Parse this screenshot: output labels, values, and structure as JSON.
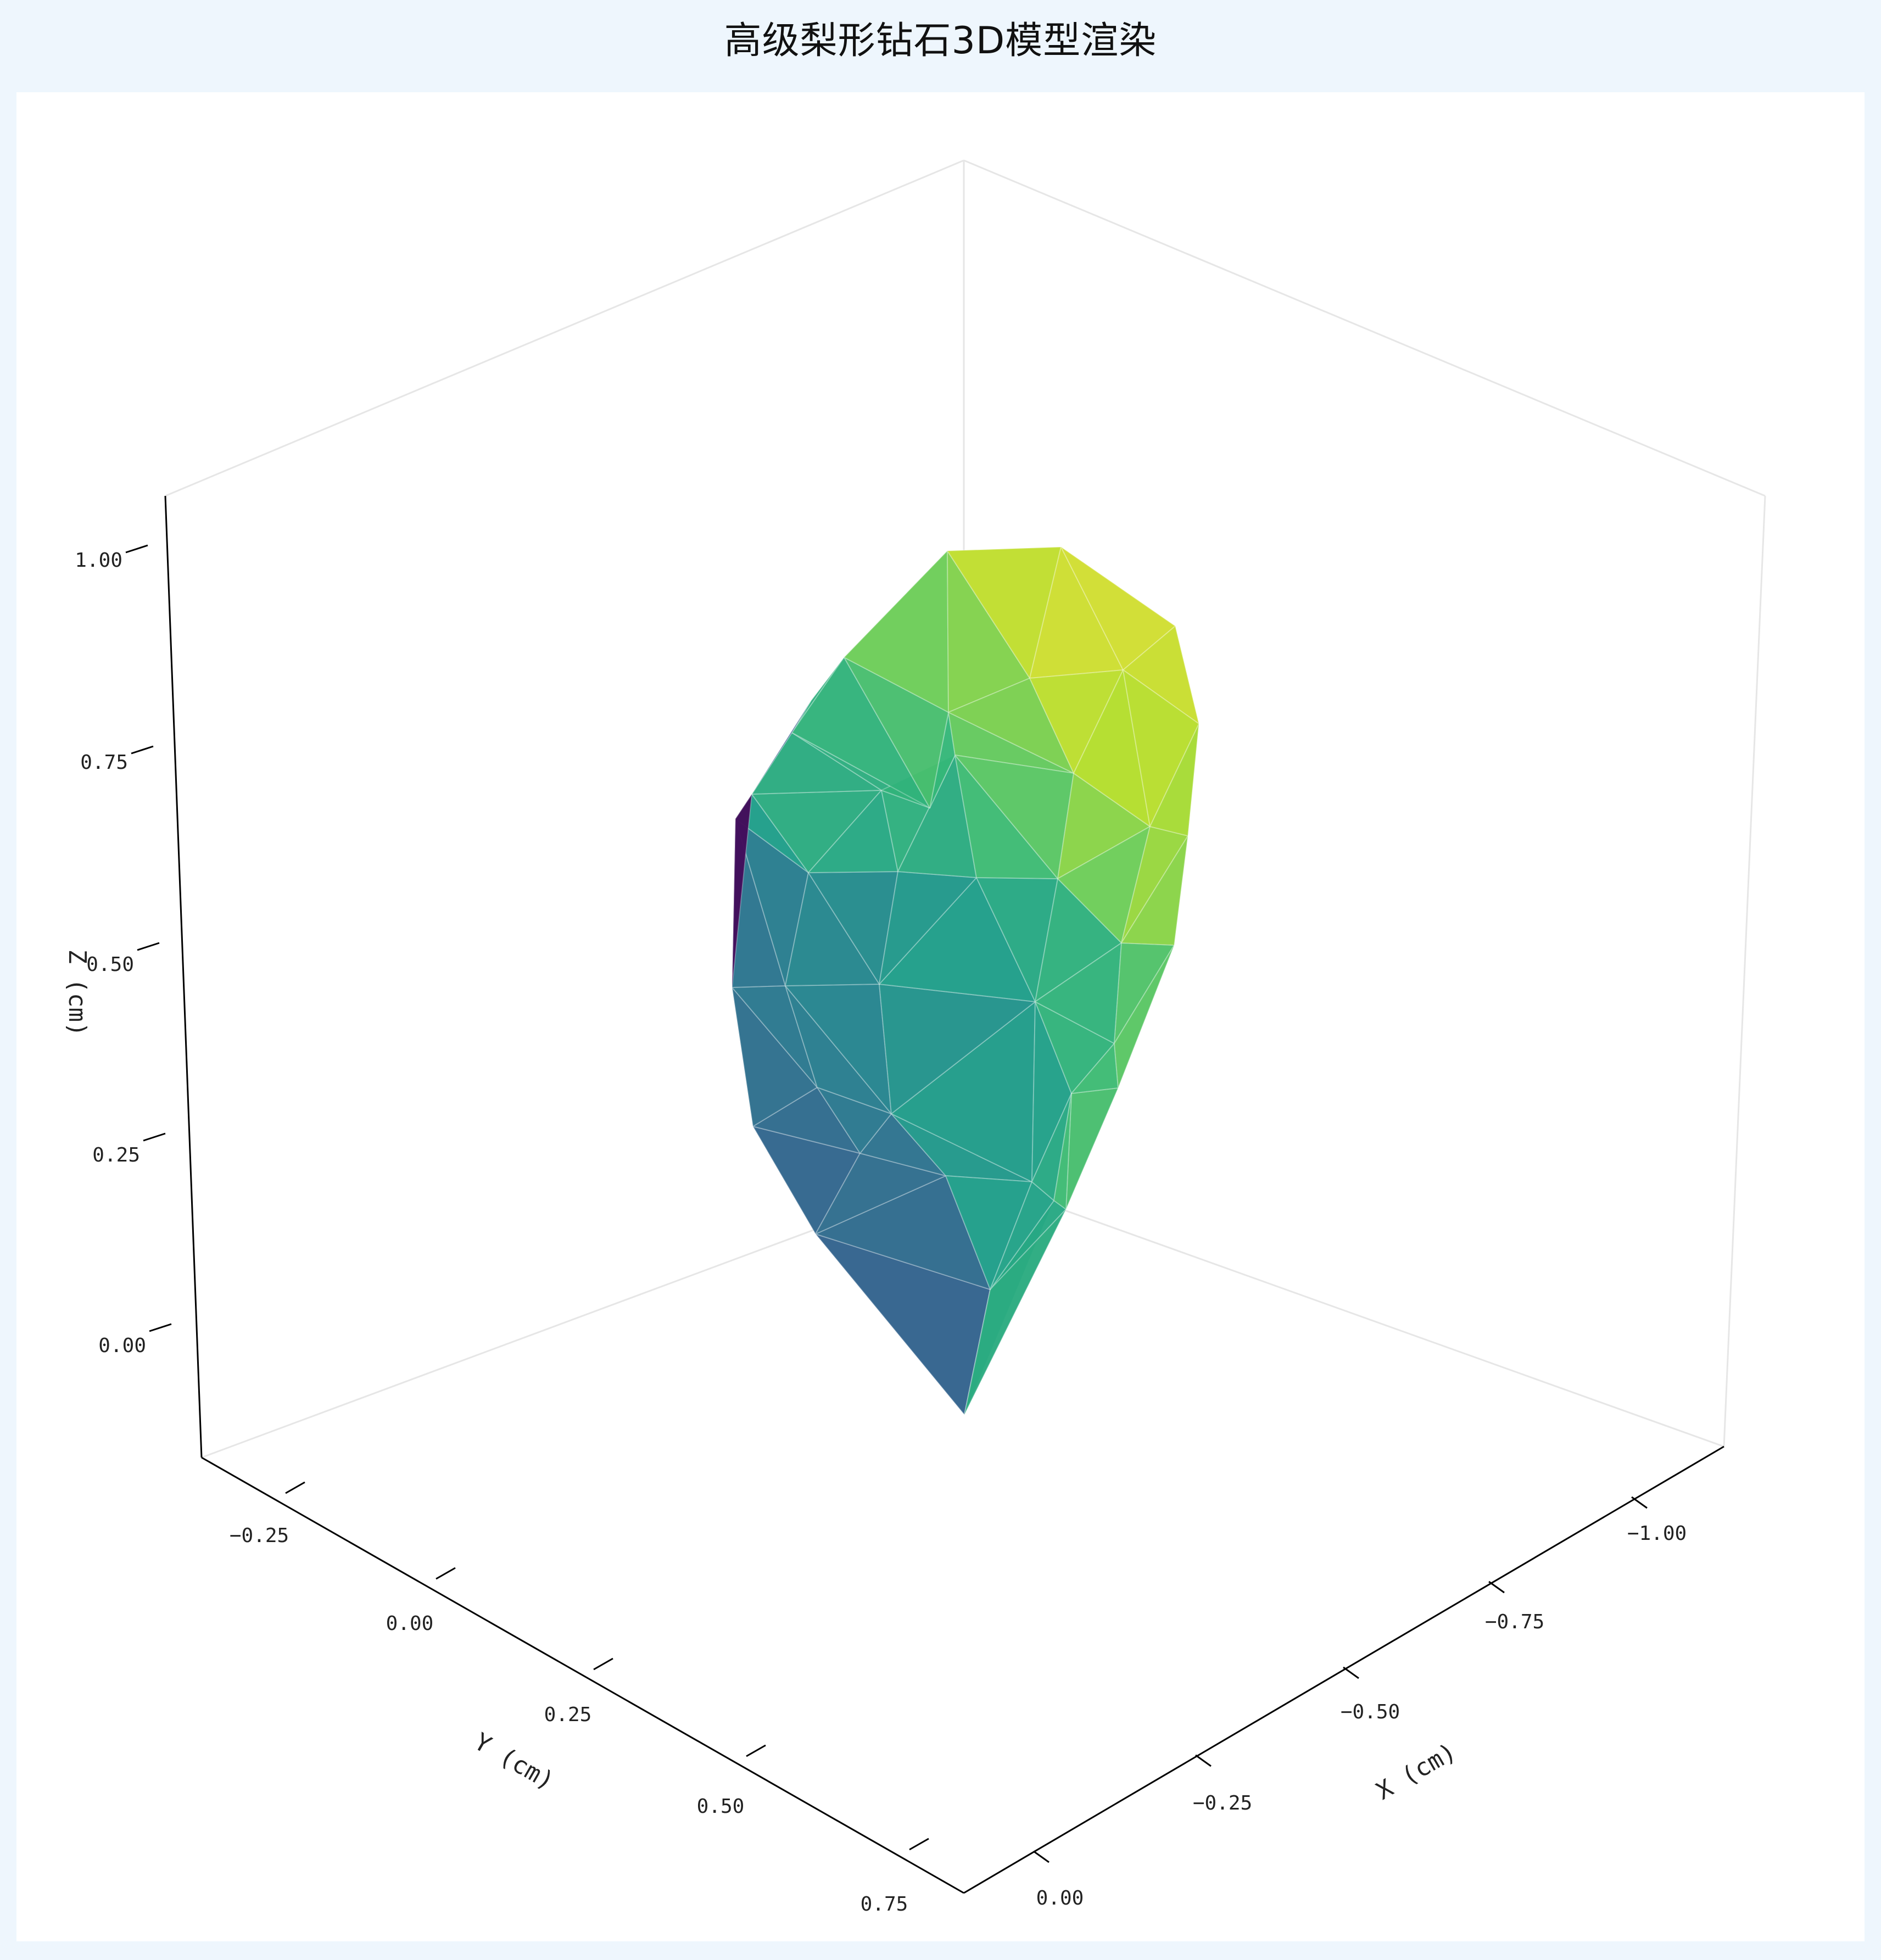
{
  "title": "高级梨形钻石3D模型渲染",
  "colors": {
    "page_background": "#eef6fd",
    "panel_background": "#ffffff",
    "axis_line": "#000000",
    "pane_edge": "#e6e6e6",
    "mesh_edge": "#ffffff",
    "colormap": "viridis"
  },
  "chart_data": {
    "type": "3d-surface",
    "title": "高级梨形钻石3D模型渲染",
    "xlabel": "X (cm)",
    "ylabel": "Y (cm)",
    "zlabel": "Z (cm)",
    "x_ticks": [
      "0.00",
      "−0.25",
      "−0.50",
      "−0.75",
      "−1.00"
    ],
    "y_ticks": [
      "−0.25",
      "0.00",
      "0.25",
      "0.50",
      "0.75"
    ],
    "z_ticks": [
      "0.00",
      "0.25",
      "0.50",
      "0.75",
      "1.00"
    ],
    "xlim": [
      -1.05,
      0.05
    ],
    "ylim": [
      -0.35,
      0.8
    ],
    "zlim": [
      -0.12,
      1.05
    ],
    "grid": false,
    "colorscale": "viridis",
    "surface": {
      "description_values": "pear-shaped diamond mesh, z from 0.0 (culet) to about 1.0 (top)",
      "z_min": 0.0,
      "z_max": 1.0
    }
  }
}
